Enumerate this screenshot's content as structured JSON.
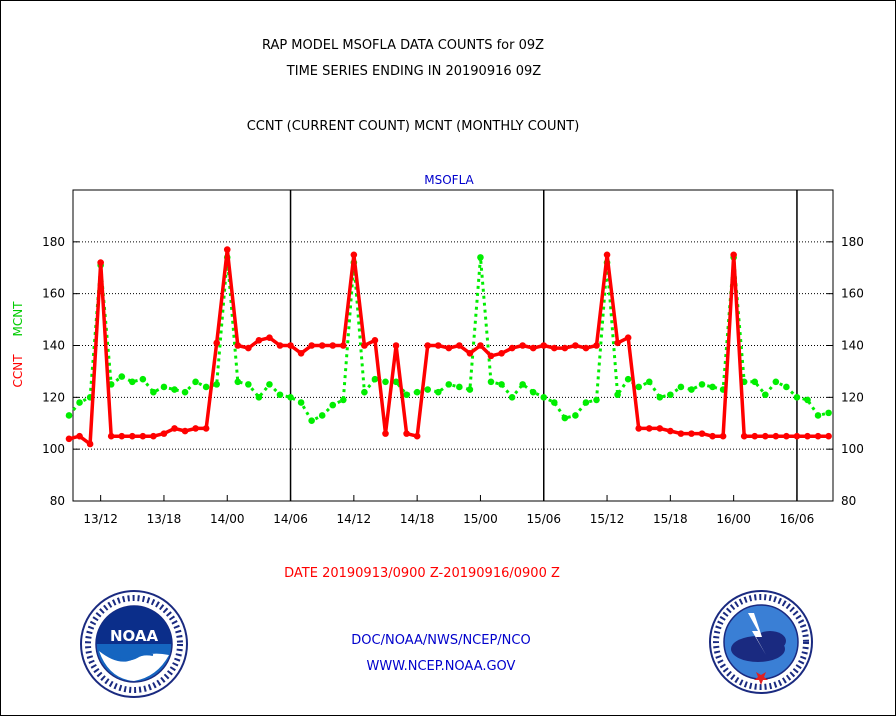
{
  "titles": {
    "line1": "RAP MODEL MSOFLA DATA COUNTS for 09Z",
    "line2": "TIME SERIES ENDING IN 20190916 09Z",
    "line3": "CCNT (CURRENT COUNT) MCNT (MONTHLY COUNT)"
  },
  "footer": {
    "date_range": "DATE 20190913/0900 Z-20190916/0900 Z",
    "org_path": "DOC/NOAA/NWS/NCEP/NCO",
    "website": "WWW.NCEP.NOAA.GOV"
  },
  "colors": {
    "ccnt": "#ff0000",
    "mcnt": "#00ee00",
    "title": "#000000",
    "plot_label": "#0000cc",
    "footer_link": "#0000cc",
    "date_text": "#ff0000"
  },
  "logos": {
    "left": {
      "icon": "noaa-logo-icon",
      "text": "NOAA"
    },
    "right": {
      "icon": "nws-logo-icon",
      "text": "NATIONAL WEATHER SERVICE"
    }
  },
  "chart_data": {
    "type": "line",
    "title": "MSOFLA",
    "ylabel_left": [
      "CCNT",
      "MCNT"
    ],
    "ylim": [
      80,
      200
    ],
    "yticks": [
      80,
      100,
      120,
      140,
      160,
      180
    ],
    "x_range_hours": [
      0,
      72
    ],
    "x_tick_labels": [
      {
        "hour": 3,
        "label": "13/12"
      },
      {
        "hour": 9,
        "label": "13/18"
      },
      {
        "hour": 15,
        "label": "14/00"
      },
      {
        "hour": 21,
        "label": "14/06"
      },
      {
        "hour": 27,
        "label": "14/12"
      },
      {
        "hour": 33,
        "label": "14/18"
      },
      {
        "hour": 39,
        "label": "15/00"
      },
      {
        "hour": 45,
        "label": "15/06"
      },
      {
        "hour": 51,
        "label": "15/12"
      },
      {
        "hour": 57,
        "label": "15/18"
      },
      {
        "hour": 63,
        "label": "16/00"
      },
      {
        "hour": 69,
        "label": "16/06"
      }
    ],
    "day_separators_hours": [
      21,
      45,
      69
    ],
    "grid": true,
    "series": [
      {
        "name": "CCNT",
        "color": "#ff0000",
        "values": [
          104,
          105,
          102,
          172,
          105,
          105,
          105,
          105,
          105,
          106,
          108,
          107,
          108,
          108,
          141,
          177,
          140,
          139,
          142,
          143,
          140,
          140,
          137,
          140,
          140,
          140,
          140,
          175,
          140,
          142,
          106,
          140,
          106,
          105,
          140,
          140,
          139,
          140,
          137,
          140,
          136,
          137,
          139,
          140,
          139,
          140,
          139,
          139,
          140,
          139,
          140,
          175,
          141,
          143,
          108,
          108,
          108,
          107,
          106,
          106,
          106,
          105,
          105,
          175,
          105,
          105,
          105,
          105,
          105,
          105,
          105,
          105,
          105
        ]
      },
      {
        "name": "MCNT",
        "color": "#00ee00",
        "values": [
          113,
          118,
          120,
          171,
          125,
          128,
          126,
          127,
          122,
          124,
          123,
          122,
          126,
          124,
          125,
          174,
          126,
          125,
          120,
          125,
          121,
          120,
          118,
          111,
          113,
          117,
          119,
          172,
          122,
          127,
          126,
          126,
          121,
          122,
          123,
          122,
          125,
          124,
          123,
          174,
          126,
          125,
          120,
          125,
          122,
          120,
          118,
          112,
          113,
          118,
          119,
          172,
          121,
          127,
          124,
          126,
          120,
          121,
          124,
          123,
          125,
          124,
          123,
          174,
          126,
          126,
          121,
          126,
          124,
          120,
          119,
          113,
          114
        ]
      }
    ]
  }
}
